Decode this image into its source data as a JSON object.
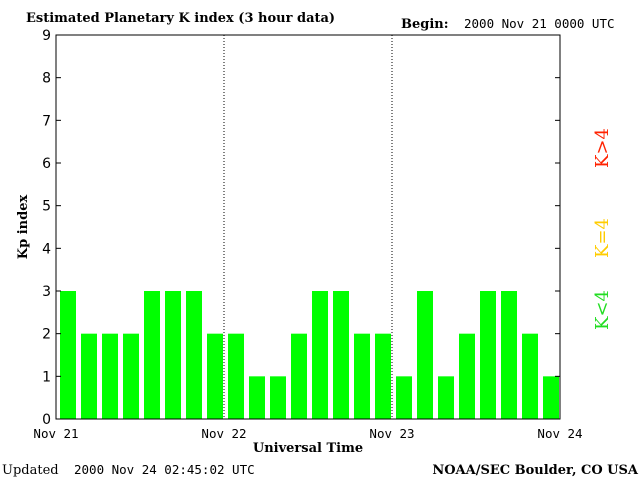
{
  "chart_data": {
    "type": "bar",
    "title": "Estimated Planetary K index (3 hour data)",
    "begin_label": "Begin:",
    "begin_value": "2000 Nov 21 0000 UTC",
    "ylabel": "Kp index",
    "xlabel": "Universal Time",
    "ylim": [
      0,
      9
    ],
    "y_ticks": [
      "0",
      "1",
      "2",
      "3",
      "4",
      "5",
      "6",
      "7",
      "8",
      "9"
    ],
    "x_tick_labels": [
      "Nov 21",
      "Nov 22",
      "Nov 23",
      "Nov 24"
    ],
    "values": [
      3,
      2,
      2,
      2,
      3,
      3,
      3,
      2,
      2,
      1,
      1,
      2,
      3,
      3,
      2,
      2,
      1,
      3,
      1,
      2,
      3,
      3,
      2,
      1
    ],
    "bar_color": "#00ff00",
    "legend": [
      {
        "label": "K<4",
        "color": "#22dd22"
      },
      {
        "label": "K=4",
        "color": "#ffcc00"
      },
      {
        "label": "K>4",
        "color": "#ff2200"
      }
    ],
    "grid": "dotted vertical day separators"
  },
  "footer": {
    "updated_label": "Updated",
    "updated_value": "2000 Nov 24 02:45:02 UTC",
    "credit": "NOAA/SEC Boulder, CO USA"
  }
}
